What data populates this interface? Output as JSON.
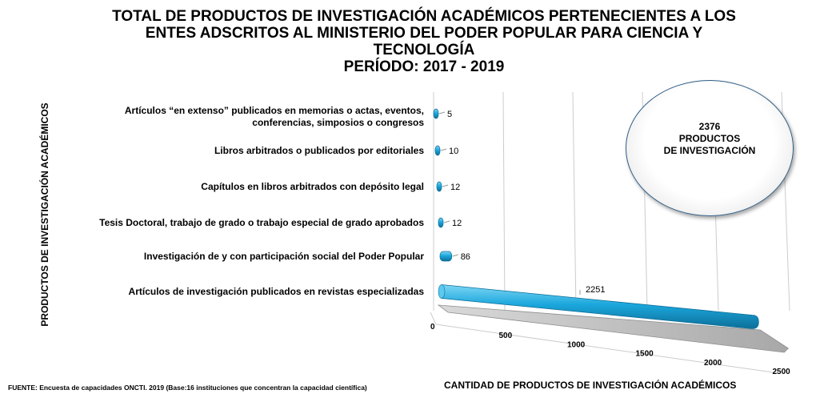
{
  "title_lines": [
    "TOTAL DE PRODUCTOS DE INVESTIGACIÓN ACADÉMICOS PERTENECIENTES A LOS",
    "ENTES ADSCRITOS AL MINISTERIO DEL PODER POPULAR PARA CIENCIA Y",
    "TECNOLOGÍA",
    "PERÍODO: 2017 -  2019"
  ],
  "ylabel": "PRODUCTOS  DE INVESTIGACIÓN ACADÉMICOS",
  "xlabel": "CANTIDAD DE PRODUCTOS DE INVESTIGACIÓN ACADÉMICOS",
  "source": "FUENTE: Encuesta de capacidades ONCTI. 2019 (Base:16 instituciones que concentran la capacidad científica)",
  "callout": {
    "total": "2376",
    "line1": "PRODUCTOS",
    "line2": "DE INVESTIGACIÓN"
  },
  "colors": {
    "bar": "#1ba7dc",
    "bar_dark": "#0d6f99",
    "floor": "#bdbdbd"
  },
  "chart_data": {
    "type": "bar",
    "orientation": "horizontal",
    "style": "3d-cylinder",
    "categories": [
      [
        "Artículos “en extenso” publicados en memorias o actas, eventos,",
        "conferencias, simposios o congresos"
      ],
      [
        "Libros arbitrados o publicados por editoriales"
      ],
      [
        "Capítulos en libros arbitrados con depósito legal"
      ],
      [
        "Tesis Doctoral, trabajo de grado o trabajo especial de grado aprobados"
      ],
      [
        "Investigación de y con participación social del Poder Popular"
      ],
      [
        "Artículos de investigación publicados en revistas especializadas"
      ]
    ],
    "values": [
      5,
      10,
      12,
      12,
      86,
      2251
    ],
    "xticks": [
      0,
      500,
      1000,
      1500,
      2000,
      2500
    ],
    "xlim": [
      0,
      2500
    ],
    "grid": true
  }
}
